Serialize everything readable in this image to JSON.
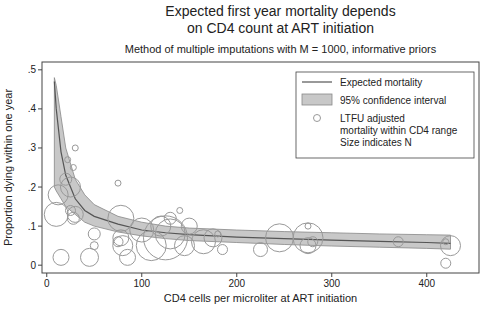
{
  "chart_data": {
    "type": "scatter",
    "title": [
      "Expected first year mortality depends",
      "on CD4 count at ART initiation"
    ],
    "subtitle": "Method of multiple imputations with M = 1000, informative priors",
    "x_label": "CD4 cells per microliter at ART initiation",
    "y_label": "Proportion dying within one year",
    "xlim": [
      -5,
      455
    ],
    "ylim": [
      -0.02,
      0.52
    ],
    "xticks": [
      0,
      100,
      200,
      300,
      400
    ],
    "yticks": [
      0,
      {
        "value": 0.1,
        "label": ".1"
      },
      {
        "value": 0.2,
        "label": ".2"
      },
      {
        "value": 0.3,
        "label": ".3"
      },
      {
        "value": 0.4,
        "label": ".4"
      },
      {
        "value": 0.5,
        "label": ".5"
      }
    ],
    "legend": "top-right",
    "series": [
      {
        "name": "Expected mortality",
        "type": "line",
        "color": "#555555",
        "x": [
          8,
          10,
          15,
          20,
          30,
          40,
          50,
          75,
          100,
          125,
          150,
          200,
          250,
          300,
          350,
          400,
          425
        ],
        "values": [
          0.47,
          0.4,
          0.29,
          0.23,
          0.17,
          0.14,
          0.125,
          0.105,
          0.09,
          0.083,
          0.078,
          0.072,
          0.068,
          0.064,
          0.061,
          0.058,
          0.056
        ]
      },
      {
        "name": "95% confidence interval",
        "type": "area",
        "color": "#c8c8c8",
        "x": [
          8,
          10,
          15,
          20,
          30,
          40,
          50,
          75,
          100,
          125,
          150,
          200,
          250,
          300,
          350,
          400,
          425
        ],
        "lower": [
          0.2,
          0.19,
          0.17,
          0.15,
          0.13,
          0.11,
          0.1,
          0.085,
          0.075,
          0.068,
          0.063,
          0.058,
          0.053,
          0.049,
          0.046,
          0.043,
          0.041
        ],
        "upper": [
          0.48,
          0.46,
          0.38,
          0.3,
          0.22,
          0.18,
          0.155,
          0.125,
          0.11,
          0.1,
          0.095,
          0.09,
          0.086,
          0.083,
          0.08,
          0.078,
          0.077
        ]
      },
      {
        "name": "LTFU adjusted mortality within CD4 range",
        "size_label": "Size indicates N",
        "type": "scatter",
        "marker": "circle",
        "color": "#999999",
        "x": [
          10,
          12,
          20,
          22,
          25,
          25,
          28,
          30,
          28,
          30,
          15,
          45,
          50,
          50,
          75,
          78,
          78,
          80,
          85,
          75,
          100,
          110,
          120,
          125,
          130,
          130,
          140,
          145,
          150,
          165,
          175,
          180,
          185,
          225,
          245,
          275,
          275,
          280,
          275,
          370,
          420,
          425,
          420
        ],
        "values": [
          0.13,
          0.18,
          0.22,
          0.27,
          0.2,
          0.14,
          0.12,
          0.3,
          0.25,
          0.13,
          0.02,
          0.02,
          0.08,
          0.05,
          0.21,
          0.12,
          0.07,
          0.05,
          0.02,
          0.06,
          0.09,
          0.05,
          0.1,
          0.07,
          0.08,
          0.12,
          0.14,
          0.05,
          0.1,
          0.06,
          0.07,
          0.08,
          0.04,
          0.04,
          0.07,
          0.07,
          0.05,
          0.06,
          0.1,
          0.06,
          0.005,
          0.05,
          0.06
        ],
        "sizes": [
          144,
          100,
          36,
          9,
          100,
          25,
          36,
          9,
          9,
          64,
          64,
          81,
          36,
          16,
          9,
          169,
          64,
          100,
          64,
          25,
          144,
          225,
          100,
          484,
          225,
          36,
          9,
          100,
          64,
          144,
          81,
          9,
          25,
          49,
          196,
          225,
          64,
          25,
          9,
          25,
          25,
          100,
          9
        ]
      }
    ]
  }
}
